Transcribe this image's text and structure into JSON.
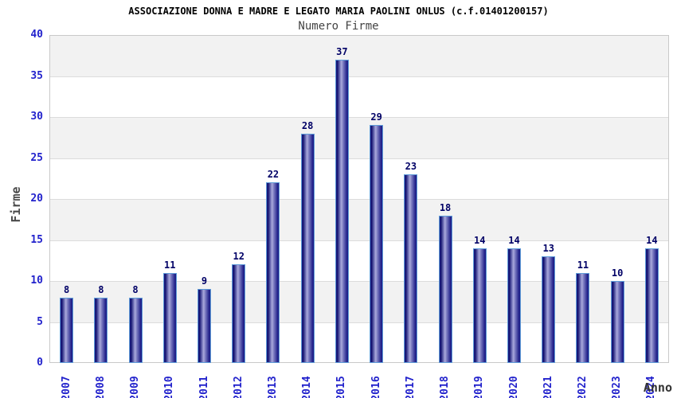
{
  "header": {
    "title": "ASSOCIAZIONE DONNA E MADRE E LEGATO MARIA PAOLINI ONLUS (c.f.01401200157)",
    "subtitle": "Numero Firme"
  },
  "chart_data": {
    "type": "bar",
    "title": "ASSOCIAZIONE DONNA E MADRE E LEGATO MARIA PAOLINI ONLUS (c.f.01401200157)",
    "subtitle": "Numero Firme",
    "xlabel": "Anno",
    "ylabel": "Firme",
    "categories": [
      "2007",
      "2008",
      "2009",
      "2010",
      "2011",
      "2012",
      "2013",
      "2014",
      "2015",
      "2016",
      "2017",
      "2018",
      "2019",
      "2020",
      "2021",
      "2022",
      "2023",
      "2024"
    ],
    "values": [
      8,
      8,
      8,
      11,
      9,
      12,
      22,
      28,
      37,
      29,
      23,
      18,
      14,
      14,
      13,
      11,
      10,
      14
    ],
    "ylim": [
      0,
      40
    ],
    "yticks": [
      0,
      5,
      10,
      15,
      20,
      25,
      30,
      35,
      40
    ],
    "grid": "horizontal-bands-alternating",
    "legend": "none",
    "bar_value_labels_shown": true
  },
  "colors": {
    "title": "#000000",
    "subtitle": "#444444",
    "tick_label": "#2222cc",
    "value_label": "#000066",
    "axis_title": "#4a4a4a",
    "bar_dark": "#1d1d84",
    "bar_light": "#a9a9db",
    "bar_border": "#5f9cd8",
    "band_gray": "#f2f2f2",
    "gridline": "#dcdcdc"
  }
}
